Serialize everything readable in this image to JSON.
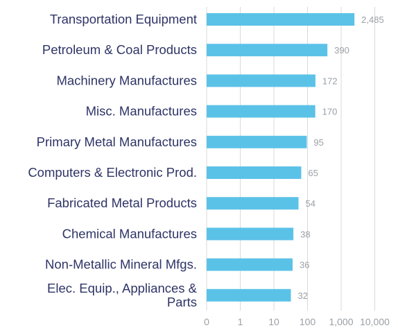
{
  "chart_data": {
    "type": "bar",
    "orientation": "horizontal",
    "title": "",
    "xlabel": "",
    "ylabel": "",
    "x_scale": "log",
    "grid": true,
    "bar_color": "#5bc2e7",
    "label_color": "#2e3466",
    "value_color": "#9aa0a6",
    "categories": [
      "Transportation Equipment",
      "Petroleum & Coal Products",
      "Machinery Manufactures",
      "Misc. Manufactures",
      "Primary Metal Manufactures",
      "Computers & Electronic Prod.",
      "Fabricated Metal Products",
      "Chemical Manufactures",
      "Non-Metallic Mineral Mfgs.",
      "Elec. Equip., Appliances & Parts"
    ],
    "values": [
      2485,
      390,
      172,
      170,
      95,
      65,
      54,
      38,
      36,
      32
    ],
    "value_labels": [
      "2,485",
      "390",
      "172",
      "170",
      "95",
      "65",
      "54",
      "38",
      "36",
      "32"
    ],
    "x_ticks": [
      0,
      1,
      10,
      100,
      1000,
      10000
    ],
    "x_tick_labels": [
      "0",
      "1",
      "10",
      "100",
      "1,000",
      "10,000"
    ]
  }
}
